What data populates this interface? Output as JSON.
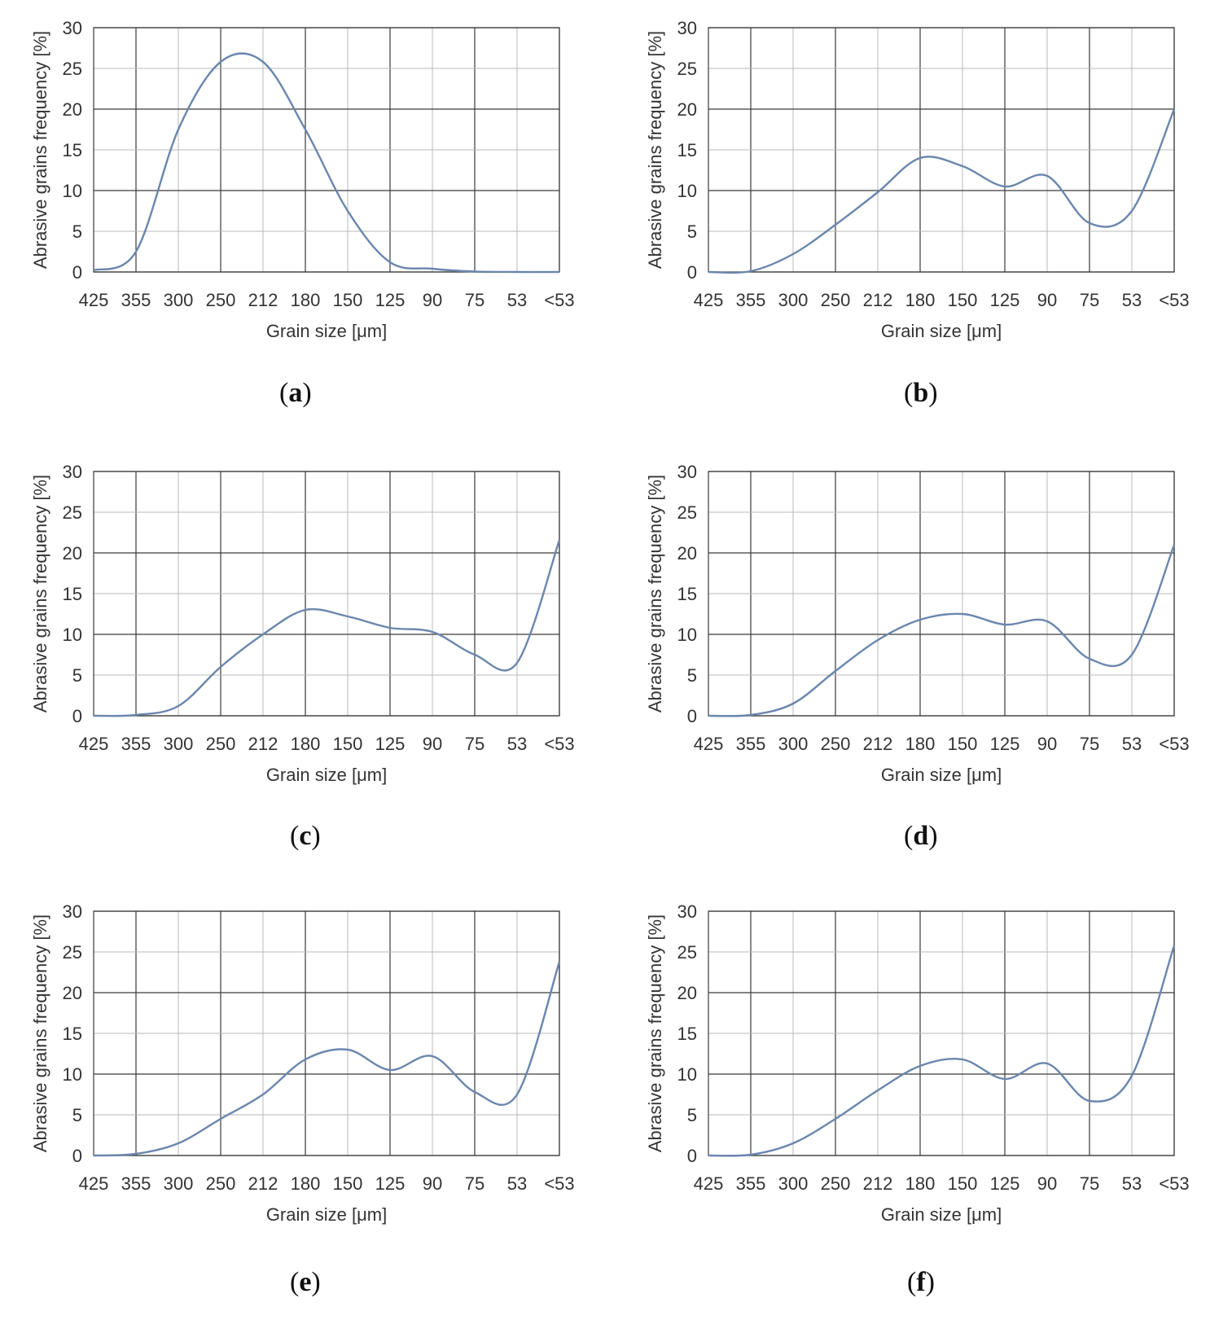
{
  "chart_data": [
    {
      "type": "line",
      "panel_label": "a",
      "categories": [
        "425",
        "355",
        "300",
        "250",
        "212",
        "180",
        "150",
        "125",
        "90",
        "75",
        "53",
        "<53"
      ],
      "values": [
        0.2,
        2.5,
        17.5,
        25.8,
        25.8,
        17.5,
        7.5,
        1.2,
        0.4,
        0.05,
        0.0,
        0.0
      ],
      "xlabel": "Grain size [μm]",
      "ylabel": "Abrasive grains frequency  [%]",
      "ylim": [
        0,
        30
      ],
      "yticks": [
        0,
        5,
        10,
        15,
        20,
        25,
        30
      ]
    },
    {
      "type": "line",
      "panel_label": "b",
      "categories": [
        "425",
        "355",
        "300",
        "250",
        "212",
        "180",
        "150",
        "125",
        "90",
        "75",
        "53",
        "<53"
      ],
      "values": [
        0.0,
        0.1,
        2.2,
        5.8,
        9.8,
        14.0,
        13.0,
        10.5,
        11.8,
        6.0,
        7.5,
        20.0
      ],
      "xlabel": "Grain size [μm]",
      "ylabel": "Abrasive grains frequency  [%]",
      "ylim": [
        0,
        30
      ],
      "yticks": [
        0,
        5,
        10,
        15,
        20,
        25,
        30
      ]
    },
    {
      "type": "line",
      "panel_label": "c",
      "categories": [
        "425",
        "355",
        "300",
        "250",
        "212",
        "180",
        "150",
        "125",
        "90",
        "75",
        "53",
        "<53"
      ],
      "values": [
        0.0,
        0.1,
        1.2,
        6.0,
        10.0,
        13.0,
        12.2,
        10.8,
        10.3,
        7.5,
        6.5,
        21.6
      ],
      "xlabel": "Grain size [μm]",
      "ylabel": "Abrasive grains frequency  [%]",
      "ylim": [
        0,
        30
      ],
      "yticks": [
        0,
        5,
        10,
        15,
        20,
        25,
        30
      ]
    },
    {
      "type": "line",
      "panel_label": "d",
      "categories": [
        "425",
        "355",
        "300",
        "250",
        "212",
        "180",
        "150",
        "125",
        "90",
        "75",
        "53",
        "<53"
      ],
      "values": [
        0.0,
        0.1,
        1.5,
        5.5,
        9.3,
        11.8,
        12.5,
        11.2,
        11.6,
        7.0,
        7.5,
        21.0
      ],
      "xlabel": "Grain size [μm]",
      "ylabel": "Abrasive grains frequency  [%]",
      "ylim": [
        0,
        30
      ],
      "yticks": [
        0,
        5,
        10,
        15,
        20,
        25,
        30
      ]
    },
    {
      "type": "line",
      "panel_label": "e",
      "categories": [
        "425",
        "355",
        "300",
        "250",
        "212",
        "180",
        "150",
        "125",
        "90",
        "75",
        "53",
        "<53"
      ],
      "values": [
        0.0,
        0.2,
        1.5,
        4.5,
        7.5,
        11.8,
        13.0,
        10.5,
        12.2,
        7.8,
        7.5,
        23.8
      ],
      "xlabel": "Grain size [μm]",
      "ylabel": "Abrasive grains frequency  [%]",
      "ylim": [
        0,
        30
      ],
      "yticks": [
        0,
        5,
        10,
        15,
        20,
        25,
        30
      ]
    },
    {
      "type": "line",
      "panel_label": "f",
      "categories": [
        "425",
        "355",
        "300",
        "250",
        "212",
        "180",
        "150",
        "125",
        "90",
        "75",
        "53",
        "<53"
      ],
      "values": [
        0.0,
        0.1,
        1.5,
        4.5,
        8.0,
        11.0,
        11.8,
        9.4,
        11.3,
        6.7,
        9.8,
        25.8
      ],
      "xlabel": "Grain size [μm]",
      "ylabel": "Abrasive grains frequency  [%]",
      "ylim": [
        0,
        30
      ],
      "yticks": [
        0,
        5,
        10,
        15,
        20,
        25,
        30
      ]
    }
  ],
  "colors": {
    "curve": "#6a86ad",
    "grid_major": "#3a3a3a",
    "grid_minor": "#b8b8b8"
  }
}
